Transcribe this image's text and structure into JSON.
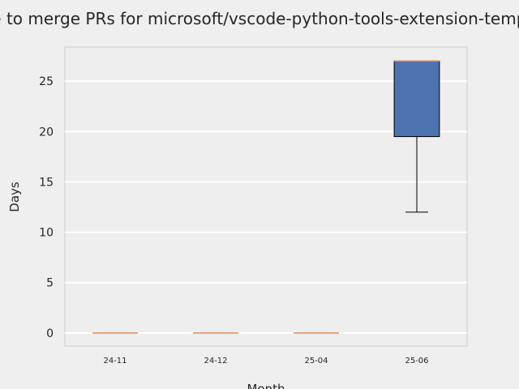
{
  "chart_data": {
    "type": "box",
    "title": "Time to merge PRs for microsoft/vscode-python-tools-extension-template",
    "xlabel": "Month",
    "ylabel": "Days",
    "ylim": [
      -1.3,
      28.4
    ],
    "yticks": [
      0,
      5,
      10,
      15,
      20,
      25
    ],
    "grid": "horizontal",
    "colors": {
      "background": "#efefef",
      "plot_background": "#eeeeee",
      "grid": "#ffffff",
      "box_fill": "#4c72b0",
      "median": "#dd8452",
      "whisker": "#000000",
      "frame": "#cccccc"
    },
    "categories": [
      "24-11",
      "24-12",
      "25-04",
      "25-06"
    ],
    "boxes": [
      {
        "label": "24-11",
        "whislo": 0,
        "q1": 0,
        "med": 0,
        "q3": 0,
        "whishi": 0
      },
      {
        "label": "24-12",
        "whislo": 0,
        "q1": 0,
        "med": 0,
        "q3": 0,
        "whishi": 0
      },
      {
        "label": "25-04",
        "whislo": 0,
        "q1": 0,
        "med": 0,
        "q3": 0,
        "whishi": 0
      },
      {
        "label": "25-06",
        "whislo": 12,
        "q1": 19.5,
        "med": 27,
        "q3": 27,
        "whishi": 27
      }
    ]
  }
}
